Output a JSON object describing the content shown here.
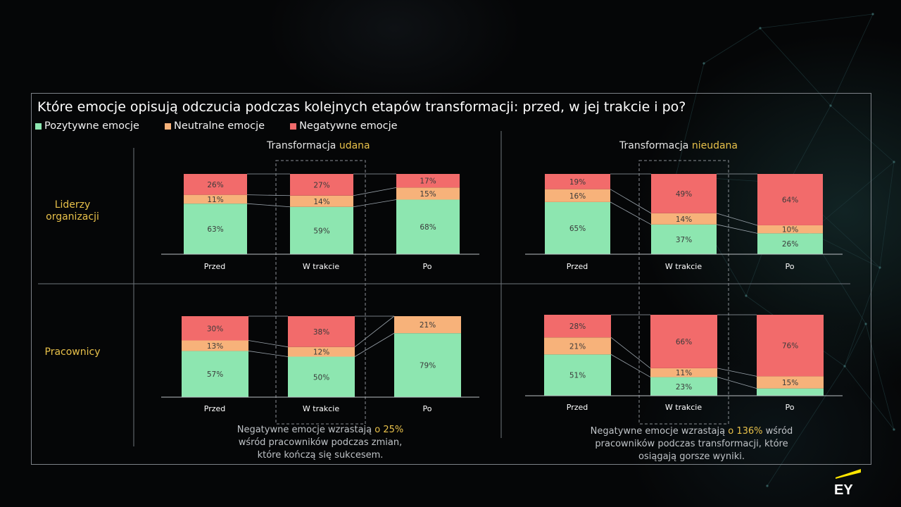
{
  "title": "Które emocje opisują odczucia podczas kolejnych etapów transformacji: przed, w jej trakcie i po?",
  "legend": [
    {
      "label": "Pozytywne emocje",
      "color": "#8de6b0"
    },
    {
      "label": "Neutralne emocje",
      "color": "#f7b27a"
    },
    {
      "label": "Negatywne emocje",
      "color": "#f26b6b"
    }
  ],
  "rows": {
    "leaders": "Liderzy organizacji",
    "employees": "Pracownicy"
  },
  "panels": {
    "success": {
      "prefix": "Transformacja ",
      "highlight": "udana"
    },
    "failure": {
      "prefix": "Transformacja ",
      "highlight": "nieudana"
    }
  },
  "notes": {
    "success": {
      "pre": "Negatywne emocje wzrastają ",
      "highlight": "o 25%",
      "post": " wśród pracowników podczas zmian, które kończą się sukcesem."
    },
    "failure": {
      "pre": "Negatywne emocje wzrastają ",
      "highlight": "o 136%",
      "post": " wśród pracowników podczas transformacji, które osiągają gorsze wyniki."
    }
  },
  "logo_text": "EY",
  "chart_data": [
    {
      "type": "bar",
      "stacked": true,
      "panel": "success",
      "row": "leaders",
      "categories": [
        "Przed",
        "W trakcie",
        "Po"
      ],
      "series": [
        {
          "name": "Pozytywne emocje",
          "values": [
            63,
            59,
            68
          ]
        },
        {
          "name": "Neutralne emocje",
          "values": [
            11,
            14,
            15
          ]
        },
        {
          "name": "Negatywne emocje",
          "values": [
            26,
            27,
            17
          ]
        }
      ]
    },
    {
      "type": "bar",
      "stacked": true,
      "panel": "failure",
      "row": "leaders",
      "categories": [
        "Przed",
        "W trakcie",
        "Po"
      ],
      "series": [
        {
          "name": "Pozytywne emocje",
          "values": [
            65,
            37,
            26
          ]
        },
        {
          "name": "Neutralne emocje",
          "values": [
            16,
            14,
            10
          ]
        },
        {
          "name": "Negatywne emocje",
          "values": [
            19,
            49,
            64
          ]
        }
      ]
    },
    {
      "type": "bar",
      "stacked": true,
      "panel": "success",
      "row": "employees",
      "categories": [
        "Przed",
        "W trakcie",
        "Po"
      ],
      "series": [
        {
          "name": "Pozytywne emocje",
          "values": [
            57,
            50,
            79
          ]
        },
        {
          "name": "Neutralne emocje",
          "values": [
            13,
            12,
            21
          ]
        },
        {
          "name": "Negatywne emocje",
          "values": [
            30,
            38,
            0
          ]
        }
      ]
    },
    {
      "type": "bar",
      "stacked": true,
      "panel": "failure",
      "row": "employees",
      "categories": [
        "Przed",
        "W trakcie",
        "Po"
      ],
      "series": [
        {
          "name": "Pozytywne emocje",
          "values": [
            51,
            23,
            9
          ]
        },
        {
          "name": "Neutralne emocje",
          "values": [
            21,
            11,
            15
          ]
        },
        {
          "name": "Negatywne emocje",
          "values": [
            28,
            66,
            76
          ]
        }
      ],
      "hidden_labels": {
        "Pozytywne emocje": [
          false,
          false,
          true
        ]
      }
    }
  ]
}
